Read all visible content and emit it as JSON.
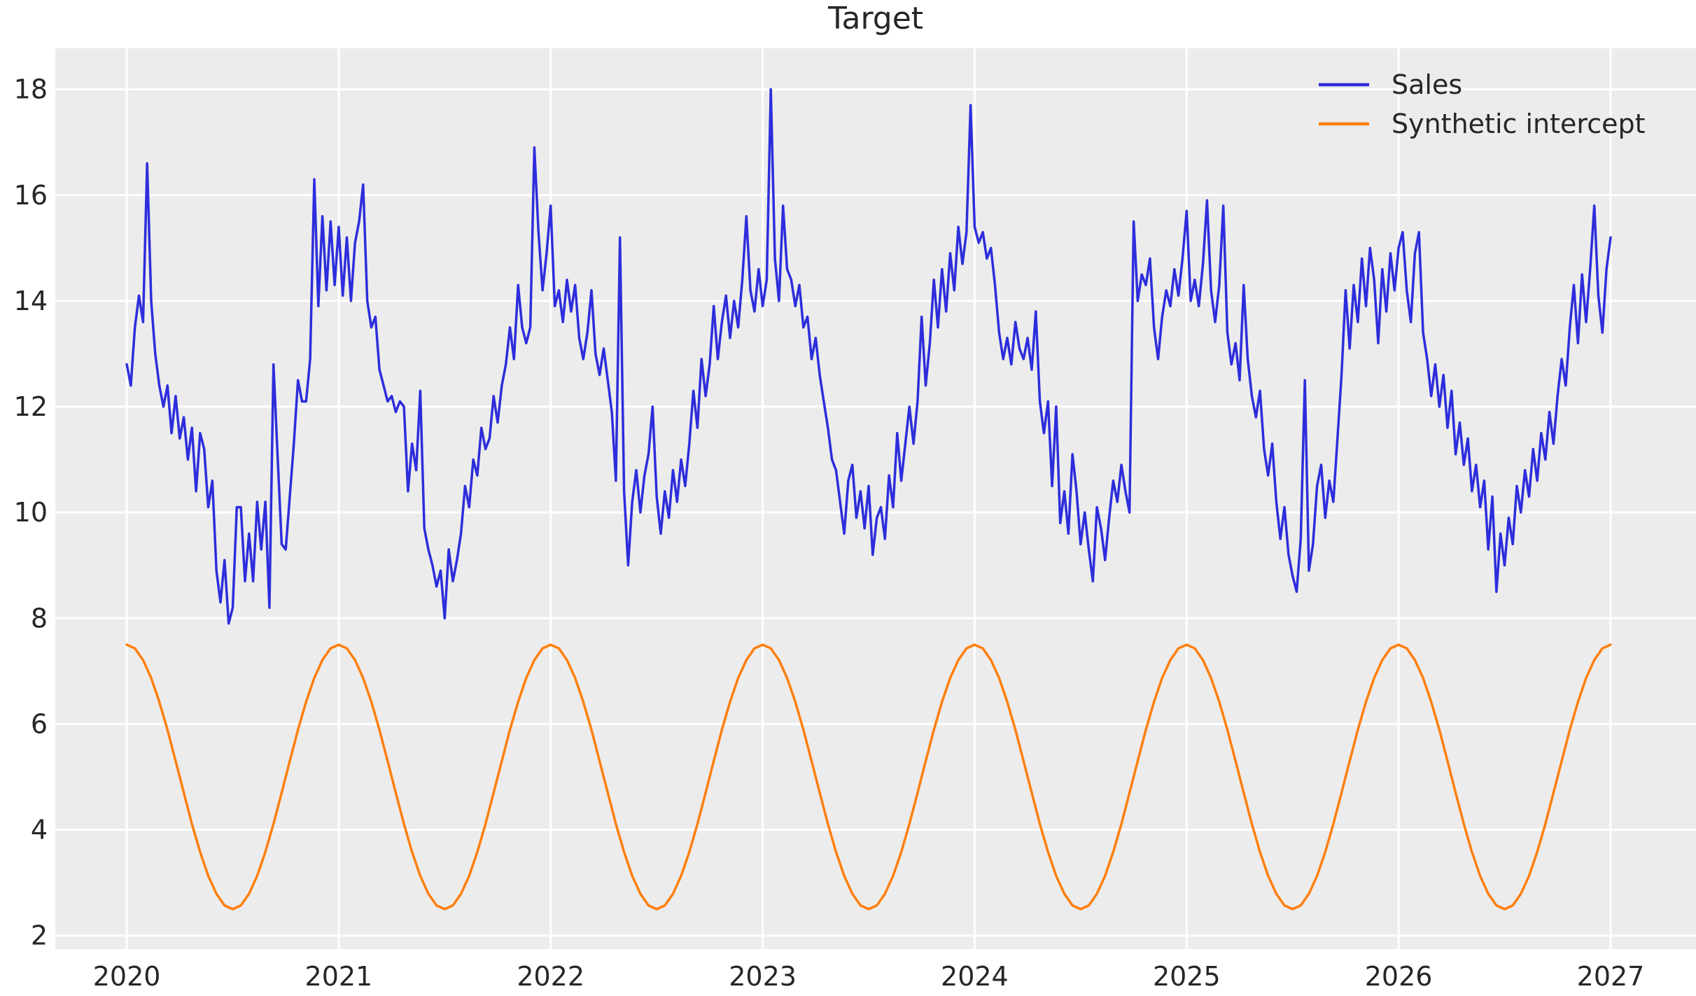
{
  "figure": {
    "title": "Target",
    "plot_background": "#ececec",
    "grid_color": "#ffffff",
    "text_color": "#262626"
  },
  "chart_data": {
    "type": "line",
    "title": "Target",
    "xlabel": "",
    "ylabel": "",
    "grid": true,
    "legend_position": "upper right",
    "xlim": [
      2019.663,
      2027.403
    ],
    "ylim": [
      1.744,
      18.776
    ],
    "x_ticks": [
      2020,
      2021,
      2022,
      2023,
      2024,
      2025,
      2026,
      2027
    ],
    "y_ticks": [
      2,
      4,
      6,
      8,
      10,
      12,
      14,
      16,
      18
    ],
    "series": [
      {
        "name": "Sales",
        "color": "#2d2ddc",
        "x_start": 2020.0,
        "x_step": 0.01923077,
        "values": [
          12.8,
          12.4,
          13.5,
          14.1,
          13.6,
          16.6,
          14.0,
          13.0,
          12.4,
          12.0,
          12.4,
          11.5,
          12.2,
          11.4,
          11.8,
          11.0,
          11.6,
          10.4,
          11.5,
          11.2,
          10.1,
          10.6,
          8.9,
          8.3,
          9.1,
          7.9,
          8.2,
          10.1,
          10.1,
          8.7,
          9.6,
          8.7,
          10.2,
          9.3,
          10.2,
          8.2,
          12.8,
          11.1,
          9.4,
          9.3,
          10.3,
          11.3,
          12.5,
          12.1,
          12.1,
          12.9,
          16.3,
          13.9,
          15.6,
          14.2,
          15.5,
          14.3,
          15.4,
          14.1,
          15.2,
          14.0,
          15.1,
          15.5,
          16.2,
          14.0,
          13.5,
          13.7,
          12.7,
          12.4,
          12.1,
          12.2,
          11.9,
          12.1,
          12.0,
          10.4,
          11.3,
          10.8,
          12.3,
          9.7,
          9.3,
          9.0,
          8.6,
          8.9,
          8.0,
          9.3,
          8.7,
          9.1,
          9.6,
          10.5,
          10.1,
          11.0,
          10.7,
          11.6,
          11.2,
          11.4,
          12.2,
          11.7,
          12.4,
          12.8,
          13.5,
          12.9,
          14.3,
          13.5,
          13.2,
          13.5,
          16.9,
          15.3,
          14.2,
          14.9,
          15.8,
          13.9,
          14.2,
          13.6,
          14.4,
          13.8,
          14.3,
          13.3,
          12.9,
          13.4,
          14.2,
          13.0,
          12.6,
          13.1,
          12.5,
          11.9,
          10.6,
          15.2,
          10.4,
          9.0,
          10.2,
          10.8,
          10.0,
          10.7,
          11.1,
          12.0,
          10.3,
          9.6,
          10.4,
          9.9,
          10.8,
          10.2,
          11.0,
          10.5,
          11.3,
          12.3,
          11.6,
          12.9,
          12.2,
          12.8,
          13.9,
          12.9,
          13.6,
          14.1,
          13.3,
          14.0,
          13.5,
          14.4,
          15.6,
          14.2,
          13.8,
          14.6,
          13.9,
          14.4,
          18.0,
          14.8,
          14.0,
          15.8,
          14.6,
          14.4,
          13.9,
          14.3,
          13.5,
          13.7,
          12.9,
          13.3,
          12.6,
          12.1,
          11.6,
          11.0,
          10.8,
          10.2,
          9.6,
          10.6,
          10.9,
          9.9,
          10.4,
          9.7,
          10.5,
          9.2,
          9.9,
          10.1,
          9.5,
          10.7,
          10.1,
          11.5,
          10.6,
          11.3,
          12.0,
          11.3,
          12.1,
          13.7,
          12.4,
          13.2,
          14.4,
          13.5,
          14.6,
          13.8,
          14.9,
          14.2,
          15.4,
          14.7,
          15.3,
          17.7,
          15.4,
          15.1,
          15.3,
          14.8,
          15.0,
          14.3,
          13.4,
          12.9,
          13.3,
          12.8,
          13.6,
          13.1,
          12.9,
          13.3,
          12.7,
          13.8,
          12.1,
          11.5,
          12.1,
          10.5,
          12.0,
          9.8,
          10.4,
          9.6,
          11.1,
          10.4,
          9.4,
          10.0,
          9.3,
          8.7,
          10.1,
          9.7,
          9.1,
          9.9,
          10.6,
          10.2,
          10.9,
          10.4,
          10.0,
          15.5,
          14.0,
          14.5,
          14.3,
          14.8,
          13.5,
          12.9,
          13.7,
          14.2,
          13.9,
          14.6,
          14.1,
          14.8,
          15.7,
          14.0,
          14.4,
          13.9,
          14.7,
          15.9,
          14.2,
          13.6,
          14.3,
          15.8,
          13.4,
          12.8,
          13.2,
          12.5,
          14.3,
          12.9,
          12.2,
          11.8,
          12.3,
          11.2,
          10.7,
          11.3,
          10.2,
          9.5,
          10.1,
          9.2,
          8.8,
          8.5,
          9.5,
          12.5,
          8.9,
          9.4,
          10.5,
          10.9,
          9.9,
          10.6,
          10.2,
          11.4,
          12.6,
          14.2,
          13.1,
          14.3,
          13.6,
          14.8,
          13.9,
          15.0,
          14.4,
          13.2,
          14.6,
          13.8,
          14.9,
          14.2,
          15.0,
          15.3,
          14.2,
          13.6,
          14.9,
          15.3,
          13.4,
          12.9,
          12.2,
          12.8,
          12.0,
          12.6,
          11.6,
          12.3,
          11.1,
          11.7,
          10.9,
          11.4,
          10.4,
          10.9,
          10.1,
          10.6,
          9.3,
          10.3,
          8.5,
          9.6,
          9.0,
          9.9,
          9.4,
          10.5,
          10.0,
          10.8,
          10.3,
          11.2,
          10.6,
          11.5,
          11.0,
          11.9,
          11.3,
          12.2,
          12.9,
          12.4,
          13.5,
          14.3,
          13.2,
          14.5,
          13.6,
          14.6,
          15.8,
          14.1,
          13.4,
          14.6,
          15.2
        ]
      },
      {
        "name": "Synthetic intercept",
        "color": "#ff7f0e",
        "x_start": 2020.0,
        "x_step": 0.03846154,
        "values": [
          7.5,
          7.43,
          7.21,
          6.87,
          6.42,
          5.89,
          5.3,
          4.7,
          4.11,
          3.58,
          3.13,
          2.79,
          2.57,
          2.5,
          2.57,
          2.79,
          3.13,
          3.58,
          4.11,
          4.7,
          5.3,
          5.89,
          6.42,
          6.87,
          7.21,
          7.43,
          7.5,
          7.43,
          7.21,
          6.87,
          6.42,
          5.89,
          5.3,
          4.7,
          4.11,
          3.58,
          3.13,
          2.79,
          2.57,
          2.5,
          2.57,
          2.79,
          3.13,
          3.58,
          4.11,
          4.7,
          5.3,
          5.89,
          6.42,
          6.87,
          7.21,
          7.43,
          7.5,
          7.43,
          7.21,
          6.87,
          6.42,
          5.89,
          5.3,
          4.7,
          4.11,
          3.58,
          3.13,
          2.79,
          2.57,
          2.5,
          2.57,
          2.79,
          3.13,
          3.58,
          4.11,
          4.7,
          5.3,
          5.89,
          6.42,
          6.87,
          7.21,
          7.43,
          7.5,
          7.43,
          7.21,
          6.87,
          6.42,
          5.89,
          5.3,
          4.7,
          4.11,
          3.58,
          3.13,
          2.79,
          2.57,
          2.5,
          2.57,
          2.79,
          3.13,
          3.58,
          4.11,
          4.7,
          5.3,
          5.89,
          6.42,
          6.87,
          7.21,
          7.43,
          7.5,
          7.43,
          7.21,
          6.87,
          6.42,
          5.89,
          5.3,
          4.7,
          4.11,
          3.58,
          3.13,
          2.79,
          2.57,
          2.5,
          2.57,
          2.79,
          3.13,
          3.58,
          4.11,
          4.7,
          5.3,
          5.89,
          6.42,
          6.87,
          7.21,
          7.43,
          7.5,
          7.43,
          7.21,
          6.87,
          6.42,
          5.89,
          5.3,
          4.7,
          4.11,
          3.58,
          3.13,
          2.79,
          2.57,
          2.5,
          2.57,
          2.79,
          3.13,
          3.58,
          4.11,
          4.7,
          5.3,
          5.89,
          6.42,
          6.87,
          7.21,
          7.43,
          7.5,
          7.43,
          7.21,
          6.87,
          6.42,
          5.89,
          5.3,
          4.7,
          4.11,
          3.58,
          3.13,
          2.79,
          2.57,
          2.5,
          2.57,
          2.79,
          3.13,
          3.58,
          4.11,
          4.7,
          5.3,
          5.89,
          6.42,
          6.87,
          7.21,
          7.43,
          7.5
        ]
      }
    ]
  }
}
